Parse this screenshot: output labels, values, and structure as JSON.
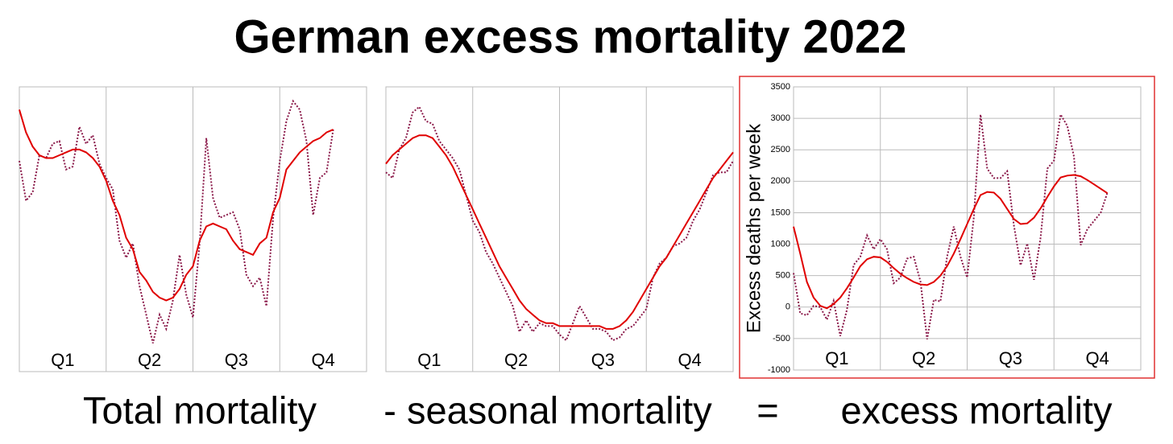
{
  "title": "German excess mortality 2022",
  "captions": [
    "Total mortality",
    "- seasonal mortality",
    "=",
    "excess mortality"
  ],
  "chart_data": [
    {
      "type": "line",
      "x": [
        0,
        1,
        2,
        3,
        4,
        5,
        6,
        7,
        8,
        9,
        10,
        11,
        12,
        13,
        14,
        15,
        16,
        17,
        18,
        19,
        20,
        21,
        22,
        23,
        24,
        25,
        26,
        27,
        28,
        29,
        30,
        31,
        32,
        33,
        34,
        35,
        36,
        37,
        38,
        39,
        40,
        41,
        42,
        43,
        44,
        45,
        46,
        47
      ],
      "xlim": [
        0,
        52
      ],
      "ylim": [
        0,
        100
      ],
      "xticks": [
        {
          "value": 6.5,
          "label": "Q1"
        },
        {
          "value": 19.5,
          "label": "Q2"
        },
        {
          "value": 32.5,
          "label": "Q3"
        },
        {
          "value": 45.5,
          "label": "Q4"
        }
      ],
      "xgrid": [
        13,
        26,
        39
      ],
      "ygrid": false,
      "series": [
        {
          "color": "#8b1a4a",
          "style": "dotted",
          "values": [
            74,
            60,
            63,
            76,
            75,
            80,
            81,
            71,
            72,
            86,
            80,
            83,
            73,
            68,
            64,
            46,
            40,
            45,
            30,
            20,
            10,
            20,
            15,
            25,
            41,
            27,
            19,
            45,
            82,
            61,
            54,
            55,
            56,
            50,
            34,
            30,
            33,
            23,
            54,
            74,
            88,
            95,
            92,
            81,
            55,
            68,
            70,
            85
          ]
        },
        {
          "color": "#e00000",
          "style": "solid",
          "values": [
            92,
            84,
            79,
            76,
            75,
            75,
            76,
            77,
            78,
            78,
            77,
            75,
            72,
            67,
            60,
            55,
            47,
            43,
            35,
            32,
            28,
            26,
            25,
            26,
            29,
            34,
            37,
            46,
            51,
            52,
            51,
            50,
            46,
            43,
            42,
            41,
            45,
            47,
            56,
            61,
            71,
            74,
            77,
            79,
            81,
            82,
            84,
            85
          ]
        }
      ]
    },
    {
      "type": "line",
      "x": [
        0,
        1,
        2,
        3,
        4,
        5,
        6,
        7,
        8,
        9,
        10,
        11,
        12,
        13,
        14,
        15,
        16,
        17,
        18,
        19,
        20,
        21,
        22,
        23,
        24,
        25,
        26,
        27,
        28,
        29,
        30,
        31,
        32,
        33,
        34,
        35,
        36,
        37,
        38,
        39,
        40,
        41,
        42,
        43,
        44,
        45,
        46,
        47,
        48,
        49,
        50,
        51,
        52
      ],
      "xlim": [
        0,
        52
      ],
      "ylim": [
        0,
        100
      ],
      "xticks": [
        {
          "value": 6.5,
          "label": "Q1"
        },
        {
          "value": 19.5,
          "label": "Q2"
        },
        {
          "value": 32.5,
          "label": "Q3"
        },
        {
          "value": 45.5,
          "label": "Q4"
        }
      ],
      "xgrid": [
        13,
        26,
        39
      ],
      "ygrid": false,
      "series": [
        {
          "color": "#8b1a4a",
          "style": "dotted",
          "values": [
            70,
            68,
            78,
            82,
            91,
            93,
            88,
            87,
            81,
            78,
            75,
            71,
            62,
            53,
            49,
            42,
            38,
            33,
            28,
            23,
            14,
            18,
            14,
            17,
            16,
            16,
            13,
            11,
            17,
            23,
            19,
            15,
            15,
            14,
            11,
            12,
            15,
            16,
            19,
            22,
            33,
            38,
            40,
            44,
            45,
            47,
            53,
            57,
            63,
            69,
            70,
            70,
            74
          ]
        },
        {
          "color": "#e00000",
          "style": "solid",
          "values": [
            73,
            76,
            78,
            80,
            82,
            83,
            83,
            82,
            79,
            76,
            72,
            67,
            62,
            57,
            52,
            47,
            42,
            37,
            33,
            29,
            25,
            22,
            20,
            18,
            17,
            17,
            16,
            16,
            16,
            16,
            16,
            16,
            16,
            15,
            15,
            16,
            18,
            21,
            25,
            29,
            33,
            37,
            40,
            44,
            48,
            52,
            56,
            60,
            64,
            68,
            71,
            74,
            77
          ]
        }
      ]
    },
    {
      "type": "line",
      "x": [
        0,
        1,
        2,
        3,
        4,
        5,
        6,
        7,
        8,
        9,
        10,
        11,
        12,
        13,
        14,
        15,
        16,
        17,
        18,
        19,
        20,
        21,
        22,
        23,
        24,
        25,
        26,
        27,
        28,
        29,
        30,
        31,
        32,
        33,
        34,
        35,
        36,
        37,
        38,
        39,
        40,
        41,
        42,
        43,
        44,
        45,
        46,
        47
      ],
      "xlim": [
        0,
        52
      ],
      "ylim": [
        -1000,
        3500
      ],
      "yticks": [
        -1000,
        -500,
        0,
        500,
        1000,
        1500,
        2000,
        2500,
        3000,
        3500
      ],
      "y_label": "Excess deaths per week",
      "xticks": [
        {
          "value": 6.5,
          "label": "Q1"
        },
        {
          "value": 19.5,
          "label": "Q2"
        },
        {
          "value": 32.5,
          "label": "Q3"
        },
        {
          "value": 45.5,
          "label": "Q4"
        }
      ],
      "xgrid": [
        13,
        26,
        39
      ],
      "ygrid": true,
      "series": [
        {
          "color": "#8b1a4a",
          "style": "dotted",
          "values": [
            540,
            -100,
            -130,
            20,
            0,
            -200,
            100,
            -460,
            -40,
            670,
            800,
            1140,
            920,
            1080,
            920,
            380,
            470,
            770,
            800,
            410,
            -510,
            115,
            90,
            800,
            1280,
            800,
            470,
            1430,
            3060,
            2200,
            2050,
            2050,
            2160,
            1300,
            665,
            1010,
            435,
            1110,
            2200,
            2330,
            3060,
            2880,
            2390,
            985,
            1240,
            1370,
            1500,
            1820
          ]
        },
        {
          "color": "#e00000",
          "style": "solid",
          "values": [
            1280,
            850,
            400,
            150,
            20,
            -20,
            50,
            150,
            300,
            470,
            650,
            760,
            800,
            790,
            720,
            620,
            530,
            460,
            400,
            360,
            350,
            400,
            500,
            650,
            850,
            1080,
            1320,
            1560,
            1780,
            1830,
            1820,
            1720,
            1560,
            1400,
            1320,
            1330,
            1420,
            1570,
            1750,
            1920,
            2060,
            2090,
            2100,
            2080,
            2020,
            1950,
            1880,
            1810
          ]
        }
      ]
    }
  ]
}
